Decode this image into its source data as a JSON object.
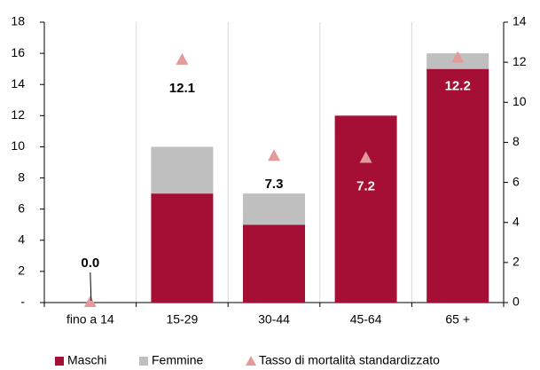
{
  "chart_data": {
    "type": "bar",
    "categories": [
      "fino a 14",
      "15-29",
      "30-44",
      "45-64",
      "65 +"
    ],
    "series": [
      {
        "name": "Maschi",
        "color": "#a50f35",
        "values": [
          0,
          7,
          5,
          12,
          15
        ]
      },
      {
        "name": "Femmine",
        "color": "#bfbfbf",
        "values": [
          0,
          3,
          2,
          0,
          1
        ]
      },
      {
        "name": "Tasso di mortalità standardizzato",
        "color": "#e49a9a",
        "axis": "y2",
        "type": "scatter",
        "values": [
          0.0,
          12.1,
          7.3,
          7.2,
          12.2
        ],
        "value_labels": [
          "0.0",
          "12.1",
          "7.3",
          "7.2",
          "12.2"
        ]
      }
    ],
    "stacked": true,
    "ylim": [
      0,
      18
    ],
    "yticks": [
      {
        "value": 0,
        "label": "-"
      },
      2,
      4,
      6,
      8,
      10,
      12,
      14,
      16,
      18
    ],
    "y2lim": [
      0,
      14
    ],
    "y2ticks": [
      0,
      2,
      4,
      6,
      8,
      10,
      12,
      14
    ],
    "legend": "bottom"
  }
}
